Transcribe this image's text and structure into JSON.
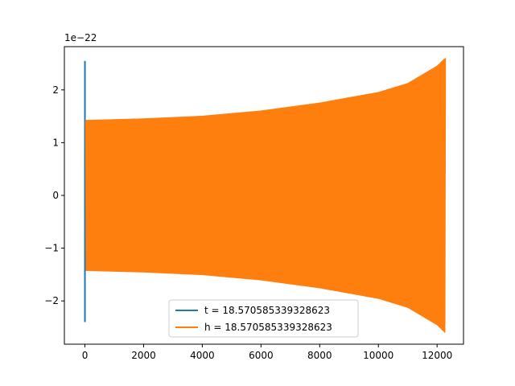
{
  "chart_data": {
    "type": "line",
    "title": "",
    "xlabel": "",
    "ylabel": "",
    "xlim": [
      -700,
      12900
    ],
    "ylim": [
      -2.82,
      2.82
    ],
    "y_offset_label": "1e−22",
    "x_ticks": [
      0,
      2000,
      4000,
      6000,
      8000,
      10000,
      12000
    ],
    "x_tick_labels": [
      "0",
      "2000",
      "4000",
      "6000",
      "8000",
      "10000",
      "12000"
    ],
    "y_ticks": [
      -2,
      -1,
      0,
      1,
      2
    ],
    "y_tick_labels": [
      "−2",
      "−1",
      "0",
      "1",
      "2"
    ],
    "grid": false,
    "legend_position": "lower center",
    "series": [
      {
        "name": "t = 18.570585339328623",
        "color": "#1f77b4",
        "x_range": [
          0,
          12280
        ],
        "initial_spike": {
          "x": 0,
          "y_max": 2.55,
          "y_min": -2.4
        },
        "envelope": {
          "x": [
            0,
            2000,
            4000,
            6000,
            8000,
            10000,
            11000,
            12000,
            12280
          ],
          "amplitude": [
            1.42,
            1.45,
            1.5,
            1.6,
            1.75,
            1.95,
            2.12,
            2.45,
            2.6
          ]
        }
      },
      {
        "name": "h = 18.570585339328623",
        "color": "#ff7f0e",
        "x_range": [
          0,
          12280
        ],
        "envelope": {
          "x": [
            0,
            2000,
            4000,
            6000,
            8000,
            10000,
            11000,
            12000,
            12280
          ],
          "amplitude": [
            1.42,
            1.45,
            1.5,
            1.6,
            1.75,
            1.95,
            2.12,
            2.45,
            2.6
          ]
        }
      }
    ]
  }
}
